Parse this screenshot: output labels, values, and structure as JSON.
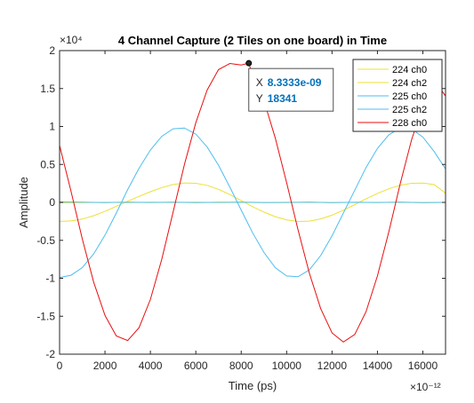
{
  "chart_data": {
    "type": "line",
    "title": "4 Channel Capture (2 Tiles on one board) in Time",
    "xlabel": "Time (ps)",
    "ylabel": "Amplitude",
    "xlim": [
      0,
      17000
    ],
    "ylim": [
      -20000,
      20000
    ],
    "x_ticks": [
      0,
      2000,
      4000,
      6000,
      8000,
      10000,
      12000,
      14000,
      16000
    ],
    "y_ticks": [
      -20000,
      -15000,
      -10000,
      -5000,
      0,
      5000,
      10000,
      15000,
      20000
    ],
    "x_tick_labels": [
      "0",
      "2000",
      "4000",
      "6000",
      "8000",
      "10000",
      "12000",
      "14000",
      "16000"
    ],
    "y_tick_labels": [
      "-2",
      "-1.5",
      "-1",
      "-0.5",
      "0",
      "0.5",
      "1",
      "1.5",
      "2"
    ],
    "x_exponent_label": "×10⁻¹²",
    "y_exponent_label": "×10⁴",
    "grid": false,
    "legend_position": "top-right",
    "series": [
      {
        "name": "224 ch0",
        "color": "#EDE034",
        "x": [
          0,
          1000,
          2000,
          3000,
          4000,
          5000,
          6000,
          7000,
          8000,
          9000,
          10000,
          11000,
          12000,
          13000,
          14000,
          15000,
          16000,
          17000
        ],
        "y": [
          -50,
          -20,
          10,
          -40,
          30,
          -10,
          20,
          -30,
          40,
          0,
          -20,
          30,
          -40,
          10,
          -10,
          20,
          -30,
          0
        ]
      },
      {
        "name": "224 ch2",
        "color": "#EDE034",
        "x": [
          0,
          500,
          1000,
          1500,
          2000,
          2500,
          3000,
          3500,
          4000,
          4500,
          5000,
          5500,
          6000,
          6500,
          7000,
          7500,
          8000,
          8500,
          9000,
          9500,
          10000,
          10500,
          11000,
          11500,
          12000,
          12500,
          13000,
          13500,
          14000,
          14500,
          15000,
          15500,
          16000,
          16500,
          17000
        ],
        "y": [
          -2500,
          -2450,
          -2200,
          -1750,
          -1180,
          -520,
          150,
          800,
          1400,
          1950,
          2350,
          2560,
          2520,
          2240,
          1720,
          1030,
          240,
          -560,
          -1280,
          -1880,
          -2300,
          -2520,
          -2470,
          -2170,
          -1680,
          -1030,
          -290,
          480,
          1180,
          1790,
          2260,
          2520,
          2550,
          2350,
          1200
        ]
      },
      {
        "name": "225 ch0",
        "color": "#4DBEEE",
        "x": [
          0,
          1000,
          2000,
          3000,
          4000,
          5000,
          6000,
          7000,
          8000,
          9000,
          10000,
          11000,
          12000,
          13000,
          14000,
          15000,
          16000,
          17000
        ],
        "y": [
          60,
          30,
          -20,
          40,
          -10,
          20,
          -40,
          10,
          30,
          -20,
          0,
          40,
          -30,
          10,
          -10,
          30,
          -20,
          0
        ]
      },
      {
        "name": "225 ch2",
        "color": "#4DBEEE",
        "x": [
          0,
          500,
          1000,
          1500,
          2000,
          2500,
          3000,
          3500,
          4000,
          4500,
          5000,
          5500,
          6000,
          6500,
          7000,
          7500,
          8000,
          8500,
          9000,
          9500,
          10000,
          10500,
          11000,
          11500,
          12000,
          12500,
          13000,
          13500,
          14000,
          14500,
          15000,
          15500,
          16000,
          16500,
          17000
        ],
        "y": [
          -9900,
          -9600,
          -8600,
          -6800,
          -4300,
          -1400,
          1700,
          4500,
          6900,
          8700,
          9700,
          9800,
          9000,
          7300,
          4900,
          2000,
          -1000,
          -4000,
          -6600,
          -8600,
          -9700,
          -9800,
          -8900,
          -7000,
          -4400,
          -1400,
          1600,
          4600,
          7100,
          8900,
          9800,
          9700,
          8600,
          6700,
          4400
        ]
      },
      {
        "name": "228 ch0",
        "color": "#EA0E0E",
        "x": [
          0,
          500,
          1000,
          1500,
          2000,
          2500,
          3000,
          3500,
          4000,
          4500,
          5000,
          5500,
          6000,
          6500,
          7000,
          7500,
          8000,
          8333.3,
          8500,
          9000,
          9500,
          10000,
          10500,
          11000,
          11500,
          12000,
          12500,
          13000,
          13500,
          14000,
          14500,
          15000,
          15500,
          16000,
          16500,
          17000
        ],
        "y": [
          7500,
          1500,
          -4800,
          -10500,
          -14900,
          -17600,
          -18200,
          -16500,
          -12800,
          -7500,
          -1300,
          5000,
          10500,
          14800,
          17500,
          18300,
          18100,
          18341,
          16800,
          13400,
          8500,
          2600,
          -3600,
          -9300,
          -14000,
          -17200,
          -18400,
          -17400,
          -14400,
          -9700,
          -3900,
          2400,
          8200,
          12800,
          16200,
          14000
        ]
      }
    ],
    "datatip": {
      "x": 8333.3,
      "y": 18341,
      "x_label": "X",
      "y_label": "Y",
      "x_text": "8.3333e-09",
      "y_text": "18341"
    }
  }
}
